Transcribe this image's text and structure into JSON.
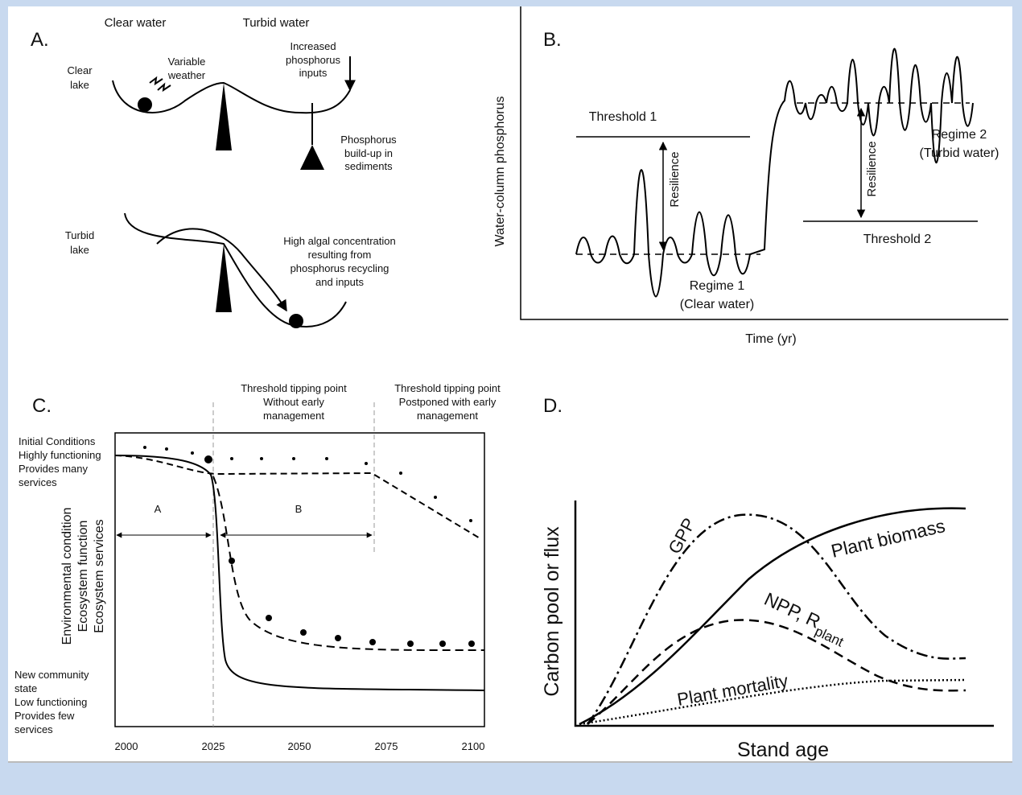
{
  "panel_a": {
    "label": "A.",
    "clear_water": "Clear water",
    "turbid_water": "Turbid water",
    "clear_lake": [
      "Clear",
      "lake"
    ],
    "variable_weather": [
      "Variable",
      "weather"
    ],
    "increased_inputs": [
      "Increased",
      "phosphorus",
      "inputs"
    ],
    "buildup": [
      "Phosphorus",
      "build-up in",
      "sediments"
    ],
    "turbid_lake": [
      "Turbid",
      "lake"
    ],
    "high_algal": [
      "High algal concentration",
      "resulting from",
      "phosphorus recycling",
      "and inputs"
    ]
  },
  "panel_b": {
    "label": "B.",
    "y_label": "Water-column phosphorus",
    "x_label": "Time (yr)",
    "threshold_1": "Threshold 1",
    "threshold_2": "Threshold 2",
    "resilience": "Resilience",
    "regime_1": [
      "Regime 1",
      "(Clear water)"
    ],
    "regime_2": [
      "Regime 2",
      "(Turbid water)"
    ]
  },
  "panel_c": {
    "label": "C.",
    "tipping_1": [
      "Threshold tipping point",
      "Without early",
      "management"
    ],
    "tipping_2": [
      "Threshold tipping point",
      "Postponed with early",
      "management"
    ],
    "initial": [
      "Initial  Conditions",
      "Highly  functioning",
      "Provides many",
      "services"
    ],
    "new_state": [
      "New community",
      "state",
      "Low functioning",
      "Provides few",
      "services"
    ],
    "y_label": [
      "Environmental  condition",
      "Ecosystem function",
      "Ecosystem services"
    ],
    "region_a": "A",
    "region_b": "B",
    "x_ticks": [
      "2000",
      "2025",
      "2050",
      "2075",
      "2100"
    ]
  },
  "panel_d": {
    "label": "D.",
    "y_label": "Carbon pool or flux",
    "x_label": "Stand age",
    "gpp": "GPP",
    "biomass": "Plant biomass",
    "npp": "NPP, R",
    "npp_sub": "plant",
    "mortality": "Plant mortality"
  }
}
